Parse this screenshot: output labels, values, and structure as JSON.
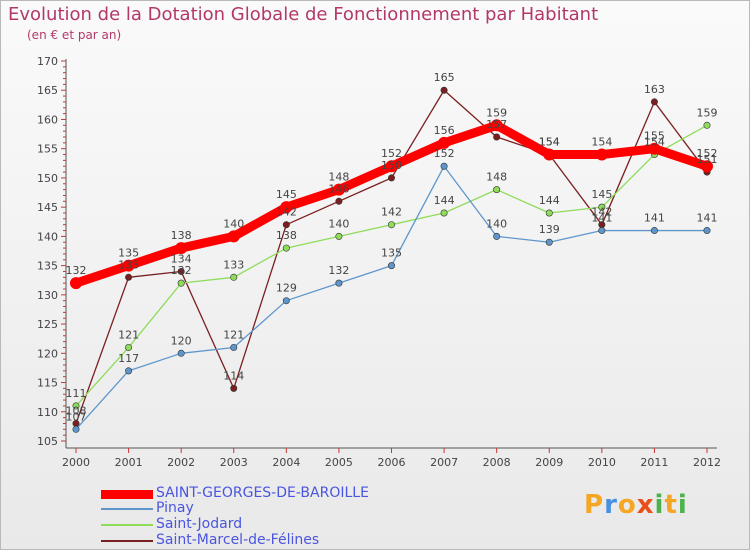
{
  "chart_data": {
    "type": "line",
    "title": "Evolution de la Dotation Globale de Fonctionnement par Habitant",
    "subtitle": "(en € et par an)",
    "xlabel": "",
    "ylabel": "",
    "categories": [
      "2000",
      "2001",
      "2002",
      "2003",
      "2004",
      "2005",
      "2006",
      "2007",
      "2008",
      "2009",
      "2010",
      "2011",
      "2012"
    ],
    "ylim": [
      105,
      170
    ],
    "yticks": [
      105,
      110,
      115,
      120,
      125,
      130,
      135,
      140,
      145,
      150,
      155,
      160,
      165,
      170
    ],
    "series": [
      {
        "name": "SAINT-GEORGES-DE-BAROILLE",
        "color": "#ff0000",
        "values": [
          132,
          135,
          138,
          140,
          145,
          148,
          152,
          156,
          159,
          154,
          154,
          155,
          152
        ]
      },
      {
        "name": "Pinay",
        "color": "#5e96cc",
        "values": [
          107,
          117,
          120,
          121,
          129,
          132,
          135,
          152,
          140,
          139,
          141,
          141,
          141
        ]
      },
      {
        "name": "Saint-Jodard",
        "color": "#8fdc5b",
        "values": [
          111,
          121,
          132,
          133,
          138,
          140,
          142,
          144,
          148,
          144,
          145,
          154,
          159
        ]
      },
      {
        "name": "Saint-Marcel-de-Félines",
        "color": "#7a1f1f",
        "values": [
          108,
          133,
          134,
          114,
          142,
          146,
          150,
          165,
          157,
          154,
          142,
          163,
          151
        ]
      }
    ],
    "legend_position": "bottom-left",
    "grid": false
  },
  "logo": {
    "letters": [
      "P",
      "r",
      "o",
      "x",
      "i",
      "t",
      "i"
    ],
    "colors": [
      "#f5a623",
      "#4a90e2",
      "#f5a623",
      "#e94e1b",
      "#4ab34a",
      "#f5a623",
      "#4ab34a"
    ]
  }
}
